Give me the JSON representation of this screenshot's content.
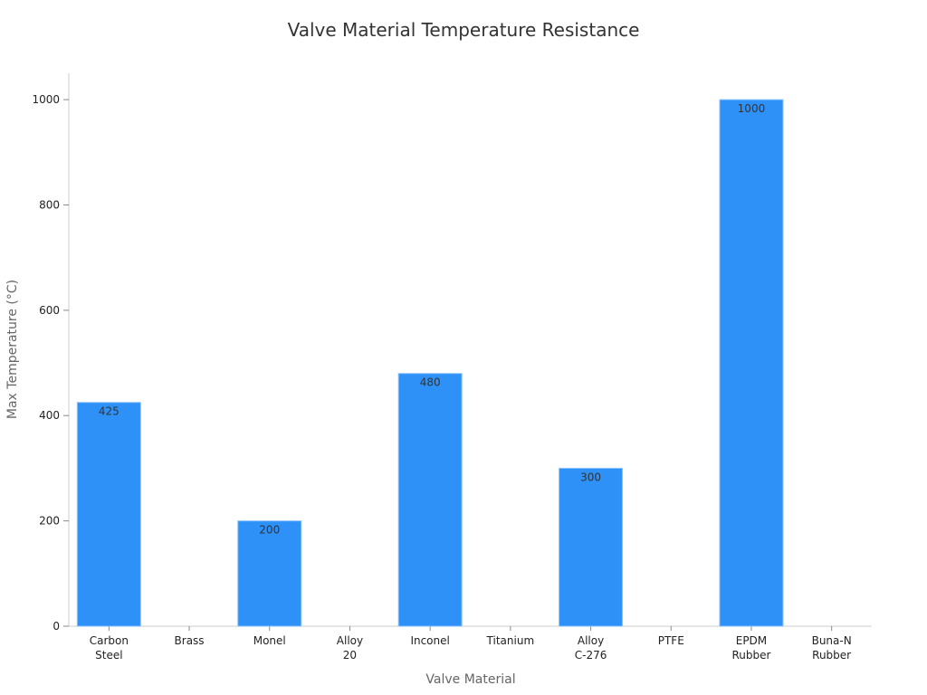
{
  "chart_data": {
    "type": "bar",
    "title": "Valve Material Temperature Resistance",
    "xlabel": "Valve Material",
    "ylabel": "Max Temperature (°C)",
    "categories": [
      [
        "Carbon",
        "Steel"
      ],
      [
        "Brass"
      ],
      [
        "Monel"
      ],
      [
        "Alloy",
        "20"
      ],
      [
        "Inconel"
      ],
      [
        "Titanium"
      ],
      [
        "Alloy",
        "C-276"
      ],
      [
        "PTFE"
      ],
      [
        "EPDM",
        "Rubber"
      ],
      [
        "Buna-N",
        "Rubber"
      ]
    ],
    "values": [
      425,
      null,
      200,
      null,
      480,
      null,
      300,
      null,
      1000,
      null
    ],
    "ylim": [
      0,
      1050
    ],
    "yticks": [
      0,
      200,
      400,
      600,
      800,
      1000
    ],
    "grid": false,
    "colors": {
      "bar": "#2e91f8",
      "bar_edge": "#8ec3fb"
    }
  }
}
